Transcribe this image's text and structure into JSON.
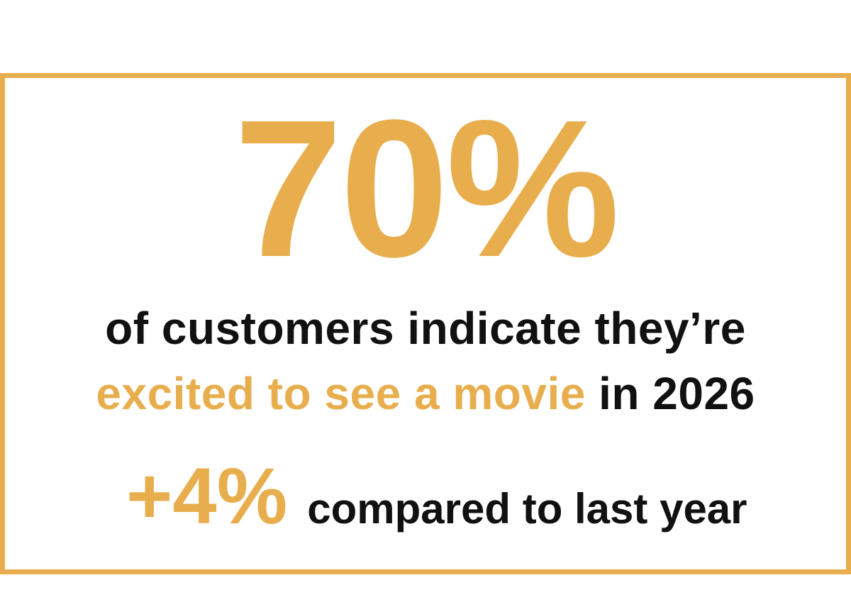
{
  "accent_color": "#E8AE4E",
  "headline": "70%",
  "line1": "of customers indicate they’re",
  "line2_highlight": "excited to see a movie",
  "line2_rest": " in 2026",
  "delta": "+4%",
  "delta_label": "compared to last year"
}
